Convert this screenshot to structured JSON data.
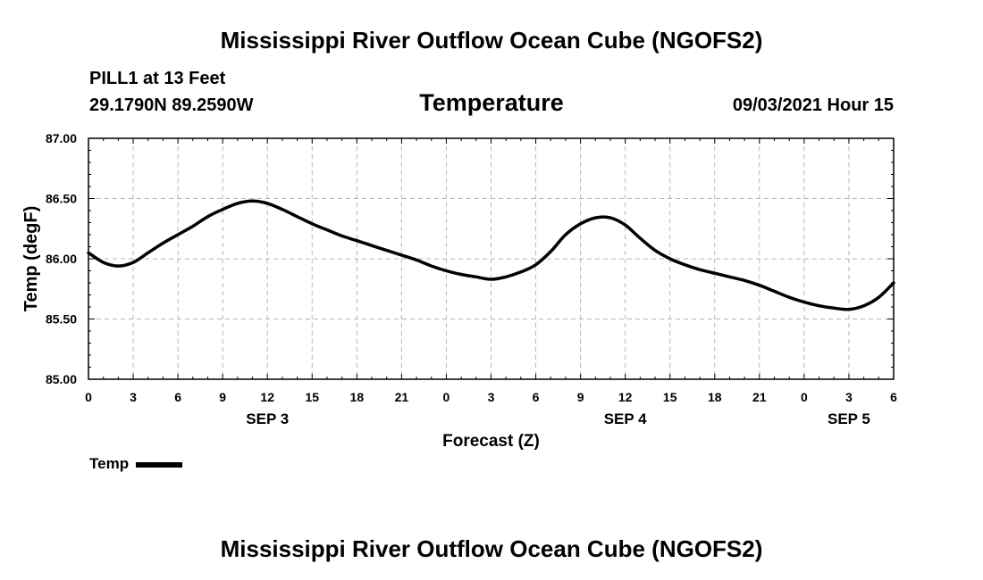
{
  "header": {
    "title": "Mississippi River Outflow Ocean Cube (NGOFS2)",
    "station": "PILL1 at 13 Feet",
    "coords": "29.1790N  89.2590W",
    "parameter": "Temperature",
    "date": "09/03/2021 Hour 15"
  },
  "footer": {
    "title": "Mississippi River Outflow Ocean Cube (NGOFS2)"
  },
  "legend": {
    "label": "Temp",
    "color": "#000000"
  },
  "chart_data": {
    "type": "line",
    "title": "Temperature",
    "xlabel": "Forecast (Z)",
    "ylabel": "Temp (degF)",
    "xlim": [
      0,
      54
    ],
    "ylim": [
      85.0,
      87.0
    ],
    "grid": true,
    "x_tick_values": [
      0,
      3,
      6,
      9,
      12,
      15,
      18,
      21,
      24,
      27,
      30,
      33,
      36,
      39,
      42,
      45,
      48,
      51,
      54
    ],
    "x_tick_labels": [
      "0",
      "3",
      "6",
      "9",
      "12",
      "15",
      "18",
      "21",
      "0",
      "3",
      "6",
      "9",
      "12",
      "15",
      "18",
      "21",
      "0",
      "3",
      "6"
    ],
    "y_tick_values": [
      85.0,
      85.5,
      86.0,
      86.5,
      87.0
    ],
    "y_tick_labels": [
      "85.00",
      "85.50",
      "86.00",
      "86.50",
      "87.00"
    ],
    "date_labels": [
      {
        "x": 12,
        "label": "SEP 3"
      },
      {
        "x": 36,
        "label": "SEP 4"
      },
      {
        "x": 51,
        "label": "SEP 5"
      }
    ],
    "series": [
      {
        "name": "Temp",
        "x": [
          0,
          1,
          2,
          3,
          4,
          5,
          6,
          7,
          8,
          9,
          10,
          11,
          12,
          13,
          14,
          15,
          16,
          17,
          18,
          19,
          20,
          21,
          22,
          23,
          24,
          25,
          26,
          27,
          28,
          29,
          30,
          31,
          32,
          33,
          34,
          35,
          36,
          37,
          38,
          39,
          40,
          41,
          42,
          43,
          44,
          45,
          46,
          47,
          48,
          49,
          50,
          51,
          52,
          53,
          54
        ],
        "values": [
          86.05,
          85.97,
          85.94,
          85.97,
          86.05,
          86.13,
          86.2,
          86.27,
          86.35,
          86.41,
          86.46,
          86.48,
          86.46,
          86.41,
          86.35,
          86.29,
          86.24,
          86.19,
          86.15,
          86.11,
          86.07,
          86.03,
          85.99,
          85.94,
          85.9,
          85.87,
          85.85,
          85.83,
          85.85,
          85.89,
          85.95,
          86.06,
          86.2,
          86.29,
          86.34,
          86.34,
          86.28,
          86.17,
          86.07,
          86.0,
          85.95,
          85.91,
          85.88,
          85.85,
          85.82,
          85.78,
          85.73,
          85.68,
          85.64,
          85.61,
          85.59,
          85.58,
          85.61,
          85.68,
          85.8
        ]
      }
    ]
  }
}
